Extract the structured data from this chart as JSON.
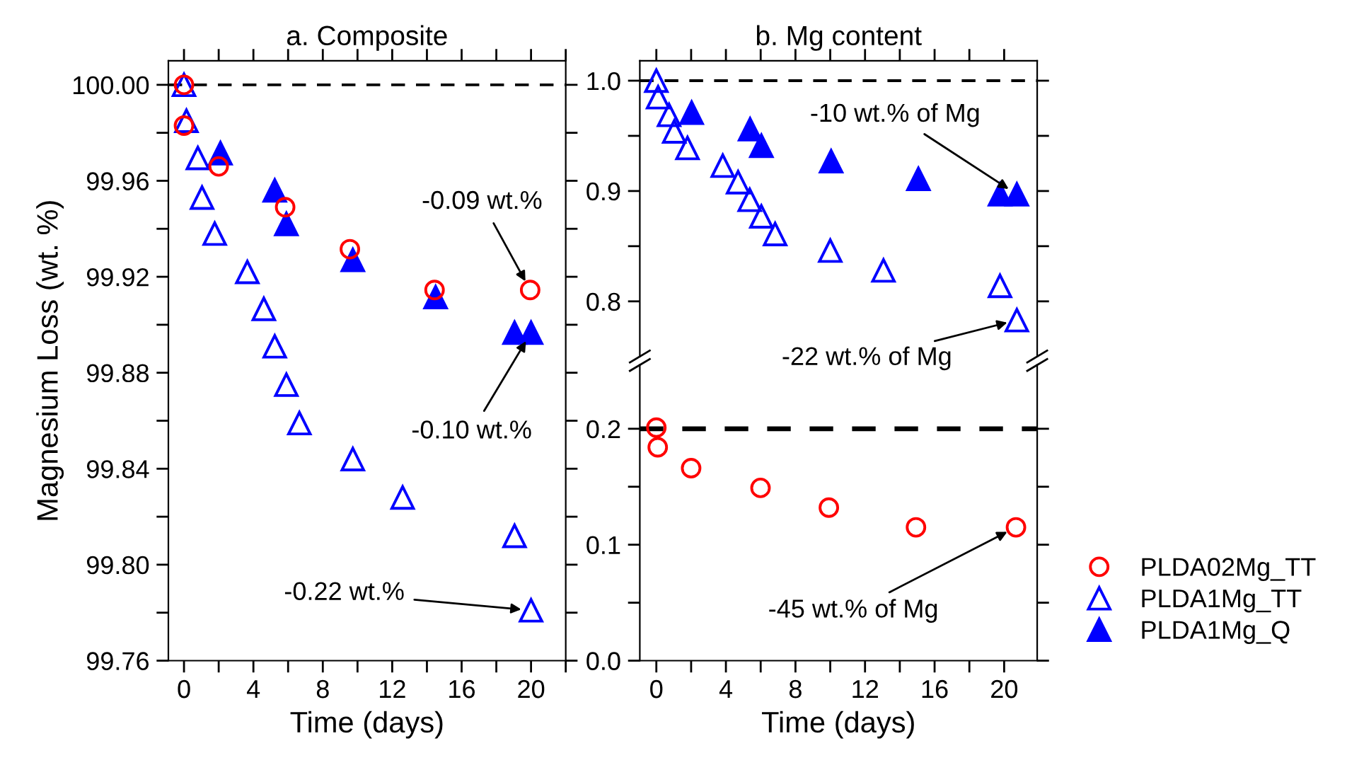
{
  "chart_data": [
    {
      "type": "scatter",
      "title": "a. Composite",
      "xlabel": "Time (days)",
      "ylabel": "Magnesium Loss (wt. %)",
      "xlim": [
        -0.9,
        22
      ],
      "ylim": [
        99.76,
        100.01
      ],
      "xticks": [
        0,
        {
          "value": 2,
          "label": null
        },
        4,
        {
          "value": 6,
          "label": null
        },
        8,
        {
          "value": 10,
          "label": null
        },
        12,
        {
          "value": 14,
          "label": null
        },
        16,
        {
          "value": 18,
          "label": null
        },
        20,
        {
          "value": 22,
          "label": null
        }
      ],
      "yticks": [
        {
          "value": 99.76,
          "label": "99.76"
        },
        {
          "value": 99.78,
          "label": null
        },
        {
          "value": 99.8,
          "label": "99.80"
        },
        {
          "value": 99.82,
          "label": null
        },
        {
          "value": 99.84,
          "label": "99.84"
        },
        {
          "value": 99.86,
          "label": null
        },
        {
          "value": 99.88,
          "label": "99.88"
        },
        {
          "value": 99.9,
          "label": null
        },
        {
          "value": 99.92,
          "label": "99.92"
        },
        {
          "value": 99.94,
          "label": null
        },
        {
          "value": 99.96,
          "label": "99.96"
        },
        {
          "value": 99.98,
          "label": null
        },
        {
          "value": 100.0,
          "label": "100.00"
        }
      ],
      "grid": false,
      "legend": "right",
      "series": [
        {
          "name": "PLDA02Mg_TT",
          "color": "#ff0000",
          "marker": "circle",
          "x": [
            0,
            0,
            2.0,
            5.83,
            9.56,
            14.44,
            19.95
          ],
          "values": [
            100.0,
            99.983,
            99.966,
            99.949,
            99.9315,
            99.9145,
            99.9145
          ]
        },
        {
          "name": "PLDA1Mg_TT",
          "color": "#0000ff",
          "marker": "triangle",
          "x": [
            0,
            0.14,
            0.8,
            1.04,
            1.77,
            3.65,
            4.6,
            5.23,
            5.9,
            6.65,
            9.73,
            12.6,
            19.05,
            20.0
          ],
          "values": [
            100.0,
            99.985,
            99.9695,
            99.953,
            99.938,
            99.922,
            99.9066,
            99.891,
            99.875,
            99.859,
            99.844,
            99.828,
            99.812,
            99.781
          ]
        },
        {
          "name": "PLDA1Mg_Q",
          "color": "#0000ff",
          "marker": "triangle",
          "x": [
            2.1,
            5.23,
            5.9,
            9.73,
            14.5,
            19.05,
            20.0
          ],
          "values": [
            99.9715,
            99.956,
            99.942,
            99.927,
            99.9115,
            99.8967,
            99.8967
          ]
        }
      ],
      "ref_lines": [
        {
          "axis": "y",
          "value": 100.0,
          "color": "#000000",
          "line_style": "dashed"
        }
      ],
      "annotations": [
        {
          "text": "-0.09 wt.%",
          "x": 19.95,
          "y": 99.9145
        },
        {
          "text": "-0.10 wt.%",
          "x": 20.0,
          "y": 99.8967
        },
        {
          "text": "-0.22 wt.%",
          "x": 20.0,
          "y": 99.781
        }
      ]
    },
    {
      "type": "scatter",
      "title": "b. Mg content",
      "xlim": [
        -0.95,
        21.9
      ],
      "ylim": [
        0.75,
        1.018
      ],
      "tick_labels": "y",
      "xticks": [
        0,
        {
          "value": 2,
          "label": null
        },
        4,
        {
          "value": 6,
          "label": null
        },
        8,
        {
          "value": 10,
          "label": null
        },
        12,
        {
          "value": 14,
          "label": null
        },
        16,
        {
          "value": 18,
          "label": null
        },
        20
      ],
      "yticks": [
        0.8,
        {
          "value": 0.85,
          "label": null
        },
        0.9,
        {
          "value": 0.95,
          "label": null
        },
        {
          "value": 1.0,
          "label": "1.0"
        }
      ],
      "grid": false,
      "series": [
        {
          "color": "#0000ff",
          "marker": "triangle",
          "x": [
            0,
            0.1,
            0.73,
            1.03,
            1.79,
            3.82,
            4.7,
            5.37,
            6.04,
            6.83,
            10.0,
            13.06,
            19.76,
            20.73
          ],
          "values": [
            1.0,
            0.985,
            0.969,
            0.954,
            0.939,
            0.923,
            0.908,
            0.892,
            0.877,
            0.861,
            0.846,
            0.828,
            0.814,
            0.783
          ]
        },
        {
          "color": "#0000ff",
          "marker": "triangle",
          "x": [
            2.03,
            5.39,
            6.04,
            10.05,
            15.07,
            19.76,
            20.73
          ],
          "values": [
            0.971,
            0.956,
            0.941,
            0.927,
            0.911,
            0.897,
            0.897
          ]
        }
      ],
      "ref_lines": [
        {
          "axis": "y",
          "value": 1.0,
          "color": "#000000",
          "line_style": "dashed"
        }
      ],
      "annotations": [
        {
          "text": "-10 wt.% of Mg",
          "x": 20.73,
          "y": 0.897
        },
        {
          "text": "-22 wt.% of Mg",
          "x": 20.73,
          "y": 0.783
        }
      ]
    },
    {
      "type": "scatter",
      "xlabel": "Time (days)",
      "xlim": [
        -0.95,
        21.9
      ],
      "ylim": [
        0,
        0.255
      ],
      "xticks": [
        0,
        {
          "value": 2,
          "label": null
        },
        4,
        {
          "value": 6,
          "label": null
        },
        8,
        {
          "value": 10,
          "label": null
        },
        12,
        {
          "value": 14,
          "label": null
        },
        16,
        {
          "value": 18,
          "label": null
        },
        20
      ],
      "yticks": [
        {
          "value": 0.0,
          "label": "0.0"
        },
        {
          "value": 0.05,
          "label": null
        },
        0.1,
        {
          "value": 0.15,
          "label": null
        },
        0.2
      ],
      "grid": false,
      "series": [
        {
          "color": "#ff0000",
          "marker": "circle",
          "x": [
            0,
            0.08,
            2.0,
            5.99,
            9.92,
            14.93,
            20.68
          ],
          "values": [
            0.201,
            0.184,
            0.166,
            0.149,
            0.132,
            0.115,
            0.115
          ]
        }
      ],
      "ref_lines": [
        {
          "axis": "y",
          "value": 0.2,
          "color": "#000000",
          "line_style": "dashed"
        }
      ],
      "annotations": [
        {
          "text": "-45 wt.% of Mg",
          "x": 20.68,
          "y": 0.115
        }
      ]
    }
  ]
}
